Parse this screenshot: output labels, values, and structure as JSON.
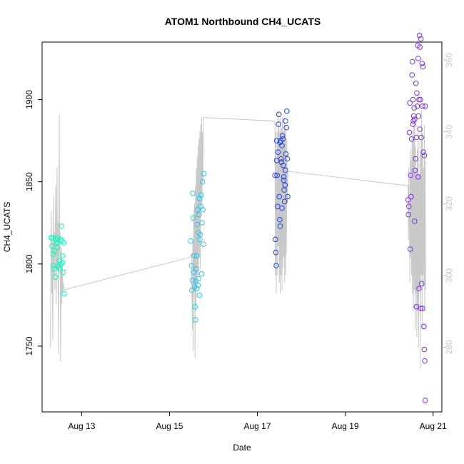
{
  "chart_data": {
    "type": "scatter",
    "title": "ATOM1 Northbound CH4_UCATS",
    "xlabel": "Date",
    "ylabel": "CH4_UCATS",
    "x_unit": "days in August",
    "xlim": [
      12.1,
      21.2
    ],
    "ylim": [
      1710,
      1935
    ],
    "y2lim": [
      262,
      365
    ],
    "x_ticks": [
      {
        "value": 13,
        "label": "Aug 13"
      },
      {
        "value": 15,
        "label": "Aug 15"
      },
      {
        "value": 17,
        "label": "Aug 17"
      },
      {
        "value": 19,
        "label": "Aug 19"
      },
      {
        "value": 21,
        "label": "Aug 21"
      }
    ],
    "y_ticks": [
      {
        "value": 1750,
        "label": "1750"
      },
      {
        "value": 1800,
        "label": "1800"
      },
      {
        "value": 1850,
        "label": "1850"
      },
      {
        "value": 1900,
        "label": "1900"
      }
    ],
    "y2_ticks": [
      {
        "value": 280,
        "label": "280"
      },
      {
        "value": 300,
        "label": "300"
      },
      {
        "value": 320,
        "label": "320"
      },
      {
        "value": 340,
        "label": "340"
      },
      {
        "value": 360,
        "label": "360"
      }
    ],
    "colors": {
      "point_outline": "#000000",
      "grey_line": "#c8c8c8",
      "axis": "#000000",
      "right_axis": "#c8c8c8"
    },
    "series": [
      {
        "color": "#00ffbb",
        "points": [
          [
            12.3,
            1816
          ],
          [
            12.32,
            1811
          ],
          [
            12.35,
            1806
          ],
          [
            12.37,
            1797
          ],
          [
            12.4,
            1792
          ],
          [
            12.33,
            1816
          ],
          [
            12.38,
            1808
          ],
          [
            12.42,
            1815
          ],
          [
            12.44,
            1810
          ],
          [
            12.46,
            1799
          ],
          [
            12.48,
            1798
          ],
          [
            12.5,
            1797
          ],
          [
            12.52,
            1815
          ],
          [
            12.54,
            1823
          ],
          [
            12.55,
            1814
          ],
          [
            12.56,
            1805
          ],
          [
            12.57,
            1801
          ],
          [
            12.58,
            1795
          ],
          [
            12.59,
            1813
          ],
          [
            12.6,
            1782
          ],
          [
            12.36,
            1799
          ],
          [
            12.43,
            1813
          ],
          [
            12.49,
            1802
          ],
          [
            12.53,
            1800
          ],
          [
            12.45,
            1816
          ]
        ]
      },
      {
        "color": "#27c6f0",
        "points": [
          [
            15.48,
            1814
          ],
          [
            15.5,
            1799
          ],
          [
            15.51,
            1784
          ],
          [
            15.52,
            1790
          ],
          [
            15.53,
            1843
          ],
          [
            15.54,
            1828
          ],
          [
            15.55,
            1795
          ],
          [
            15.56,
            1805
          ],
          [
            15.57,
            1786
          ],
          [
            15.58,
            1774
          ],
          [
            15.59,
            1766
          ],
          [
            15.6,
            1790
          ],
          [
            15.61,
            1797
          ],
          [
            15.62,
            1805
          ],
          [
            15.63,
            1824
          ],
          [
            15.64,
            1833
          ],
          [
            15.65,
            1787
          ],
          [
            15.66,
            1819
          ],
          [
            15.67,
            1830
          ],
          [
            15.68,
            1840
          ],
          [
            15.69,
            1815
          ],
          [
            15.7,
            1818
          ],
          [
            15.71,
            1835
          ],
          [
            15.72,
            1842
          ],
          [
            15.73,
            1794
          ],
          [
            15.74,
            1825
          ],
          [
            15.75,
            1850
          ],
          [
            15.76,
            1833
          ],
          [
            15.77,
            1812
          ],
          [
            15.78,
            1855
          ],
          [
            15.62,
            1785
          ],
          [
            15.66,
            1791
          ],
          [
            15.68,
            1781
          ]
        ]
      },
      {
        "color": "#2442e0",
        "points": [
          [
            17.4,
            1854
          ],
          [
            17.41,
            1815
          ],
          [
            17.42,
            1807
          ],
          [
            17.43,
            1799
          ],
          [
            17.44,
            1875
          ],
          [
            17.45,
            1854
          ],
          [
            17.46,
            1835
          ],
          [
            17.47,
            1868
          ],
          [
            17.48,
            1885
          ],
          [
            17.49,
            1891
          ],
          [
            17.5,
            1841
          ],
          [
            17.51,
            1827
          ],
          [
            17.52,
            1823
          ],
          [
            17.53,
            1875
          ],
          [
            17.54,
            1864
          ],
          [
            17.55,
            1862
          ],
          [
            17.56,
            1834
          ],
          [
            17.57,
            1878
          ],
          [
            17.58,
            1876
          ],
          [
            17.59,
            1860
          ],
          [
            17.6,
            1853
          ],
          [
            17.61,
            1845
          ],
          [
            17.62,
            1838
          ],
          [
            17.63,
            1848
          ],
          [
            17.64,
            1887
          ],
          [
            17.65,
            1867
          ],
          [
            17.66,
            1883
          ],
          [
            17.67,
            1893
          ],
          [
            17.68,
            1864
          ],
          [
            17.69,
            1841
          ],
          [
            17.44,
            1863
          ],
          [
            17.52,
            1874
          ],
          [
            17.56,
            1872
          ],
          [
            17.6,
            1851
          ],
          [
            17.64,
            1857
          ]
        ]
      },
      {
        "color": "#7f2fe8",
        "points": [
          [
            20.43,
            1839
          ],
          [
            20.44,
            1830
          ],
          [
            20.45,
            1835
          ],
          [
            20.46,
            1880
          ],
          [
            20.47,
            1898
          ],
          [
            20.48,
            1809
          ],
          [
            20.49,
            1854
          ],
          [
            20.5,
            1841
          ],
          [
            20.51,
            1876
          ],
          [
            20.52,
            1915
          ],
          [
            20.53,
            1923
          ],
          [
            20.54,
            1900
          ],
          [
            20.55,
            1887
          ],
          [
            20.56,
            1890
          ],
          [
            20.57,
            1895
          ],
          [
            20.58,
            1888
          ],
          [
            20.59,
            1857
          ],
          [
            20.6,
            1864
          ],
          [
            20.61,
            1910
          ],
          [
            20.62,
            1877
          ],
          [
            20.63,
            1904
          ],
          [
            20.64,
            1896
          ],
          [
            20.65,
            1933
          ],
          [
            20.66,
            1925
          ],
          [
            20.67,
            1890
          ],
          [
            20.68,
            1900
          ],
          [
            20.69,
            1939
          ],
          [
            20.7,
            1932
          ],
          [
            20.71,
            1900
          ],
          [
            20.72,
            1937
          ],
          [
            20.73,
            1877
          ],
          [
            20.74,
            1788
          ],
          [
            20.75,
            1922
          ],
          [
            20.76,
            1896
          ],
          [
            20.77,
            1920
          ],
          [
            20.78,
            1868
          ],
          [
            20.79,
            1762
          ],
          [
            20.8,
            1748
          ],
          [
            20.81,
            1741
          ],
          [
            20.82,
            1717
          ],
          [
            20.68,
            1785
          ],
          [
            20.72,
            1773
          ],
          [
            20.76,
            1773
          ],
          [
            20.62,
            1774
          ],
          [
            20.58,
            1826
          ],
          [
            20.54,
            1885
          ],
          [
            20.66,
            1853
          ],
          [
            20.7,
            1882
          ],
          [
            20.8,
            1866
          ],
          [
            20.82,
            1896
          ]
        ]
      }
    ],
    "grey_line": {
      "axis": "right",
      "points": [
        [
          12.29,
          280
        ],
        [
          12.3,
          305
        ],
        [
          12.31,
          318
        ],
        [
          12.32,
          295
        ],
        [
          12.33,
          310
        ],
        [
          12.34,
          282
        ],
        [
          12.35,
          300
        ],
        [
          12.36,
          322
        ],
        [
          12.37,
          300
        ],
        [
          12.38,
          312
        ],
        [
          12.39,
          296
        ],
        [
          12.4,
          314
        ],
        [
          12.41,
          325
        ],
        [
          12.42,
          292
        ],
        [
          12.43,
          305
        ],
        [
          12.44,
          330
        ],
        [
          12.45,
          302
        ],
        [
          12.46,
          315
        ],
        [
          12.47,
          278
        ],
        [
          12.48,
          300
        ],
        [
          12.49,
          345
        ],
        [
          12.5,
          306
        ],
        [
          12.51,
          312
        ],
        [
          12.52,
          276
        ],
        [
          12.53,
          300
        ],
        [
          12.54,
          308
        ],
        [
          12.55,
          292
        ],
        [
          12.56,
          302
        ],
        [
          12.57,
          295
        ],
        [
          12.58,
          298
        ],
        [
          12.6,
          296
        ],
        [
          15.45,
          305
        ],
        [
          15.5,
          306
        ],
        [
          15.52,
          285
        ],
        [
          15.53,
          310
        ],
        [
          15.54,
          279
        ],
        [
          15.55,
          318
        ],
        [
          15.56,
          296
        ],
        [
          15.57,
          320
        ],
        [
          15.58,
          277
        ],
        [
          15.59,
          325
        ],
        [
          15.6,
          290
        ],
        [
          15.61,
          330
        ],
        [
          15.62,
          297
        ],
        [
          15.63,
          333
        ],
        [
          15.64,
          300
        ],
        [
          15.65,
          336
        ],
        [
          15.66,
          300
        ],
        [
          15.67,
          338
        ],
        [
          15.68,
          305
        ],
        [
          15.69,
          340
        ],
        [
          15.7,
          302
        ],
        [
          15.71,
          342
        ],
        [
          15.72,
          318
        ],
        [
          15.73,
          344
        ],
        [
          15.74,
          320
        ],
        [
          15.75,
          340
        ],
        [
          15.76,
          326
        ],
        [
          15.77,
          343
        ],
        [
          15.78,
          344
        ],
        [
          15.8,
          344
        ],
        [
          17.4,
          343
        ],
        [
          17.41,
          300
        ],
        [
          17.42,
          340
        ],
        [
          17.43,
          295
        ],
        [
          17.44,
          320
        ],
        [
          17.45,
          340
        ],
        [
          17.46,
          300
        ],
        [
          17.47,
          345
        ],
        [
          17.48,
          308
        ],
        [
          17.49,
          342
        ],
        [
          17.5,
          298
        ],
        [
          17.51,
          340
        ],
        [
          17.52,
          295
        ],
        [
          17.53,
          344
        ],
        [
          17.54,
          300
        ],
        [
          17.55,
          341
        ],
        [
          17.56,
          296
        ],
        [
          17.57,
          344
        ],
        [
          17.58,
          302
        ],
        [
          17.59,
          340
        ],
        [
          17.6,
          305
        ],
        [
          17.61,
          344
        ],
        [
          17.62,
          298
        ],
        [
          17.63,
          342
        ],
        [
          17.64,
          300
        ],
        [
          17.65,
          340
        ],
        [
          17.66,
          306
        ],
        [
          17.67,
          338
        ],
        [
          17.68,
          320
        ],
        [
          17.7,
          329
        ],
        [
          20.43,
          325
        ],
        [
          20.44,
          310
        ],
        [
          20.45,
          330
        ],
        [
          20.46,
          315
        ],
        [
          20.47,
          298
        ],
        [
          20.48,
          335
        ],
        [
          20.49,
          305
        ],
        [
          20.5,
          332
        ],
        [
          20.51,
          300
        ],
        [
          20.52,
          340
        ],
        [
          20.53,
          295
        ],
        [
          20.54,
          338
        ],
        [
          20.55,
          290
        ],
        [
          20.56,
          342
        ],
        [
          20.57,
          296
        ],
        [
          20.58,
          344
        ],
        [
          20.59,
          285
        ],
        [
          20.6,
          336
        ],
        [
          20.61,
          295
        ],
        [
          20.62,
          330
        ],
        [
          20.63,
          283
        ],
        [
          20.64,
          335
        ],
        [
          20.65,
          290
        ],
        [
          20.66,
          340
        ],
        [
          20.67,
          280
        ],
        [
          20.68,
          328
        ],
        [
          20.69,
          296
        ],
        [
          20.7,
          338
        ],
        [
          20.71,
          274
        ],
        [
          20.72,
          334
        ],
        [
          20.73,
          300
        ],
        [
          20.74,
          346
        ],
        [
          20.75,
          285
        ],
        [
          20.76,
          340
        ],
        [
          20.77,
          300
        ],
        [
          20.78,
          330
        ],
        [
          20.79,
          297
        ],
        [
          20.8,
          342
        ],
        [
          20.81,
          290
        ],
        [
          20.82,
          332
        ],
        [
          20.83,
          296
        ]
      ]
    }
  }
}
